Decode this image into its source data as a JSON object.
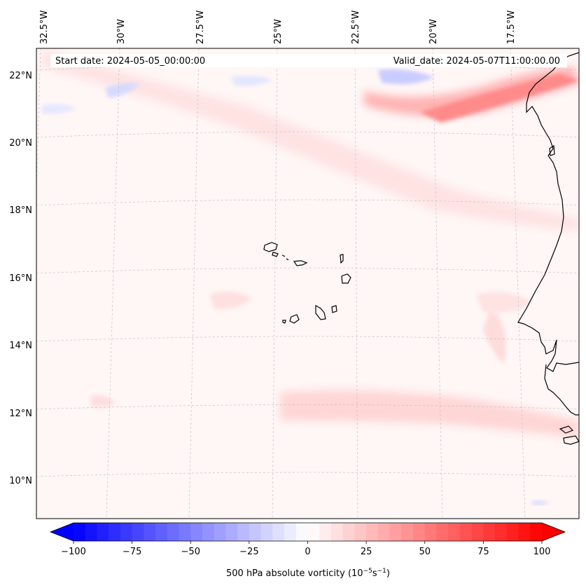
{
  "info": {
    "start_date": "Start date: 2024-05-05_00:00:00",
    "valid_date": "Valid_date: 2024-05-07T11:00:00.00"
  },
  "map": {
    "lon_labels": [
      "32.5°W",
      "30°W",
      "27.5°W",
      "25°W",
      "22.5°W",
      "20°W",
      "17.5°W"
    ],
    "lat_labels": [
      "22°N",
      "20°N",
      "18°N",
      "16°N",
      "14°N",
      "12°N",
      "10°N"
    ],
    "gridlines": true,
    "coastline_color": "#000000"
  },
  "colorbar": {
    "label_text": "500 hPa absolute vorticity (10",
    "label_exp1": "−5",
    "label_mid": "s",
    "label_exp2": "−1",
    "label_end": ")",
    "ticks": [
      "−100",
      "−75",
      "−50",
      "−25",
      "0",
      "25",
      "50",
      "75",
      "100"
    ],
    "range": [
      -100,
      100
    ],
    "levels": 40,
    "min_color": "#0000ff",
    "mid_color": "#ffffff",
    "max_color": "#ff0000",
    "extend": "both"
  }
}
